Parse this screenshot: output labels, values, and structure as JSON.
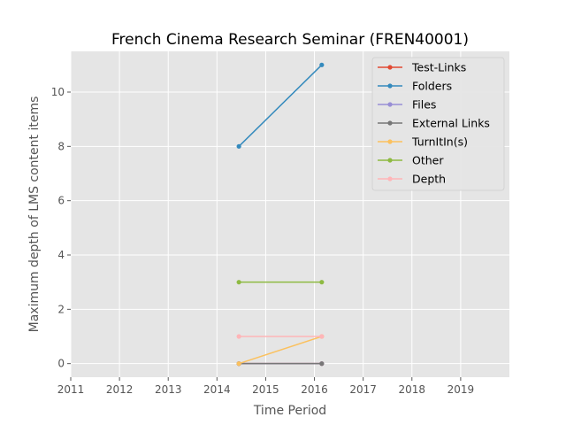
{
  "chart_data": {
    "type": "line",
    "title": "French Cinema Research  Seminar (FREN40001)",
    "xlabel": "Time Period",
    "ylabel": "Maximum depth of LMS content items",
    "xlim": [
      2011,
      2020
    ],
    "ylim": [
      -0.5,
      11.5
    ],
    "xticks": [
      2011,
      2012,
      2013,
      2014,
      2015,
      2016,
      2017,
      2018,
      2019
    ],
    "yticks": [
      0,
      2,
      4,
      6,
      8,
      10
    ],
    "grid": true,
    "legend_position": "top-right",
    "series": [
      {
        "name": "Test-Links",
        "color": "#E24A33",
        "x": [
          2014.45,
          2016.15
        ],
        "y": [
          0,
          0
        ]
      },
      {
        "name": "Folders",
        "color": "#348ABD",
        "x": [
          2014.45,
          2016.15
        ],
        "y": [
          8,
          11
        ]
      },
      {
        "name": "Files",
        "color": "#988ED5",
        "x": [
          2014.45,
          2016.15
        ],
        "y": [
          0,
          0
        ]
      },
      {
        "name": "External Links",
        "color": "#777777",
        "x": [
          2014.45,
          2016.15
        ],
        "y": [
          0,
          0
        ]
      },
      {
        "name": "TurnItIn(s)",
        "color": "#FBC15E",
        "x": [
          2014.45,
          2016.15
        ],
        "y": [
          0,
          1
        ]
      },
      {
        "name": "Other",
        "color": "#8EBA42",
        "x": [
          2014.45,
          2016.15
        ],
        "y": [
          3,
          3
        ]
      },
      {
        "name": "Depth",
        "color": "#FFB5B8",
        "x": [
          2014.45,
          2016.15
        ],
        "y": [
          1,
          1
        ]
      }
    ]
  }
}
